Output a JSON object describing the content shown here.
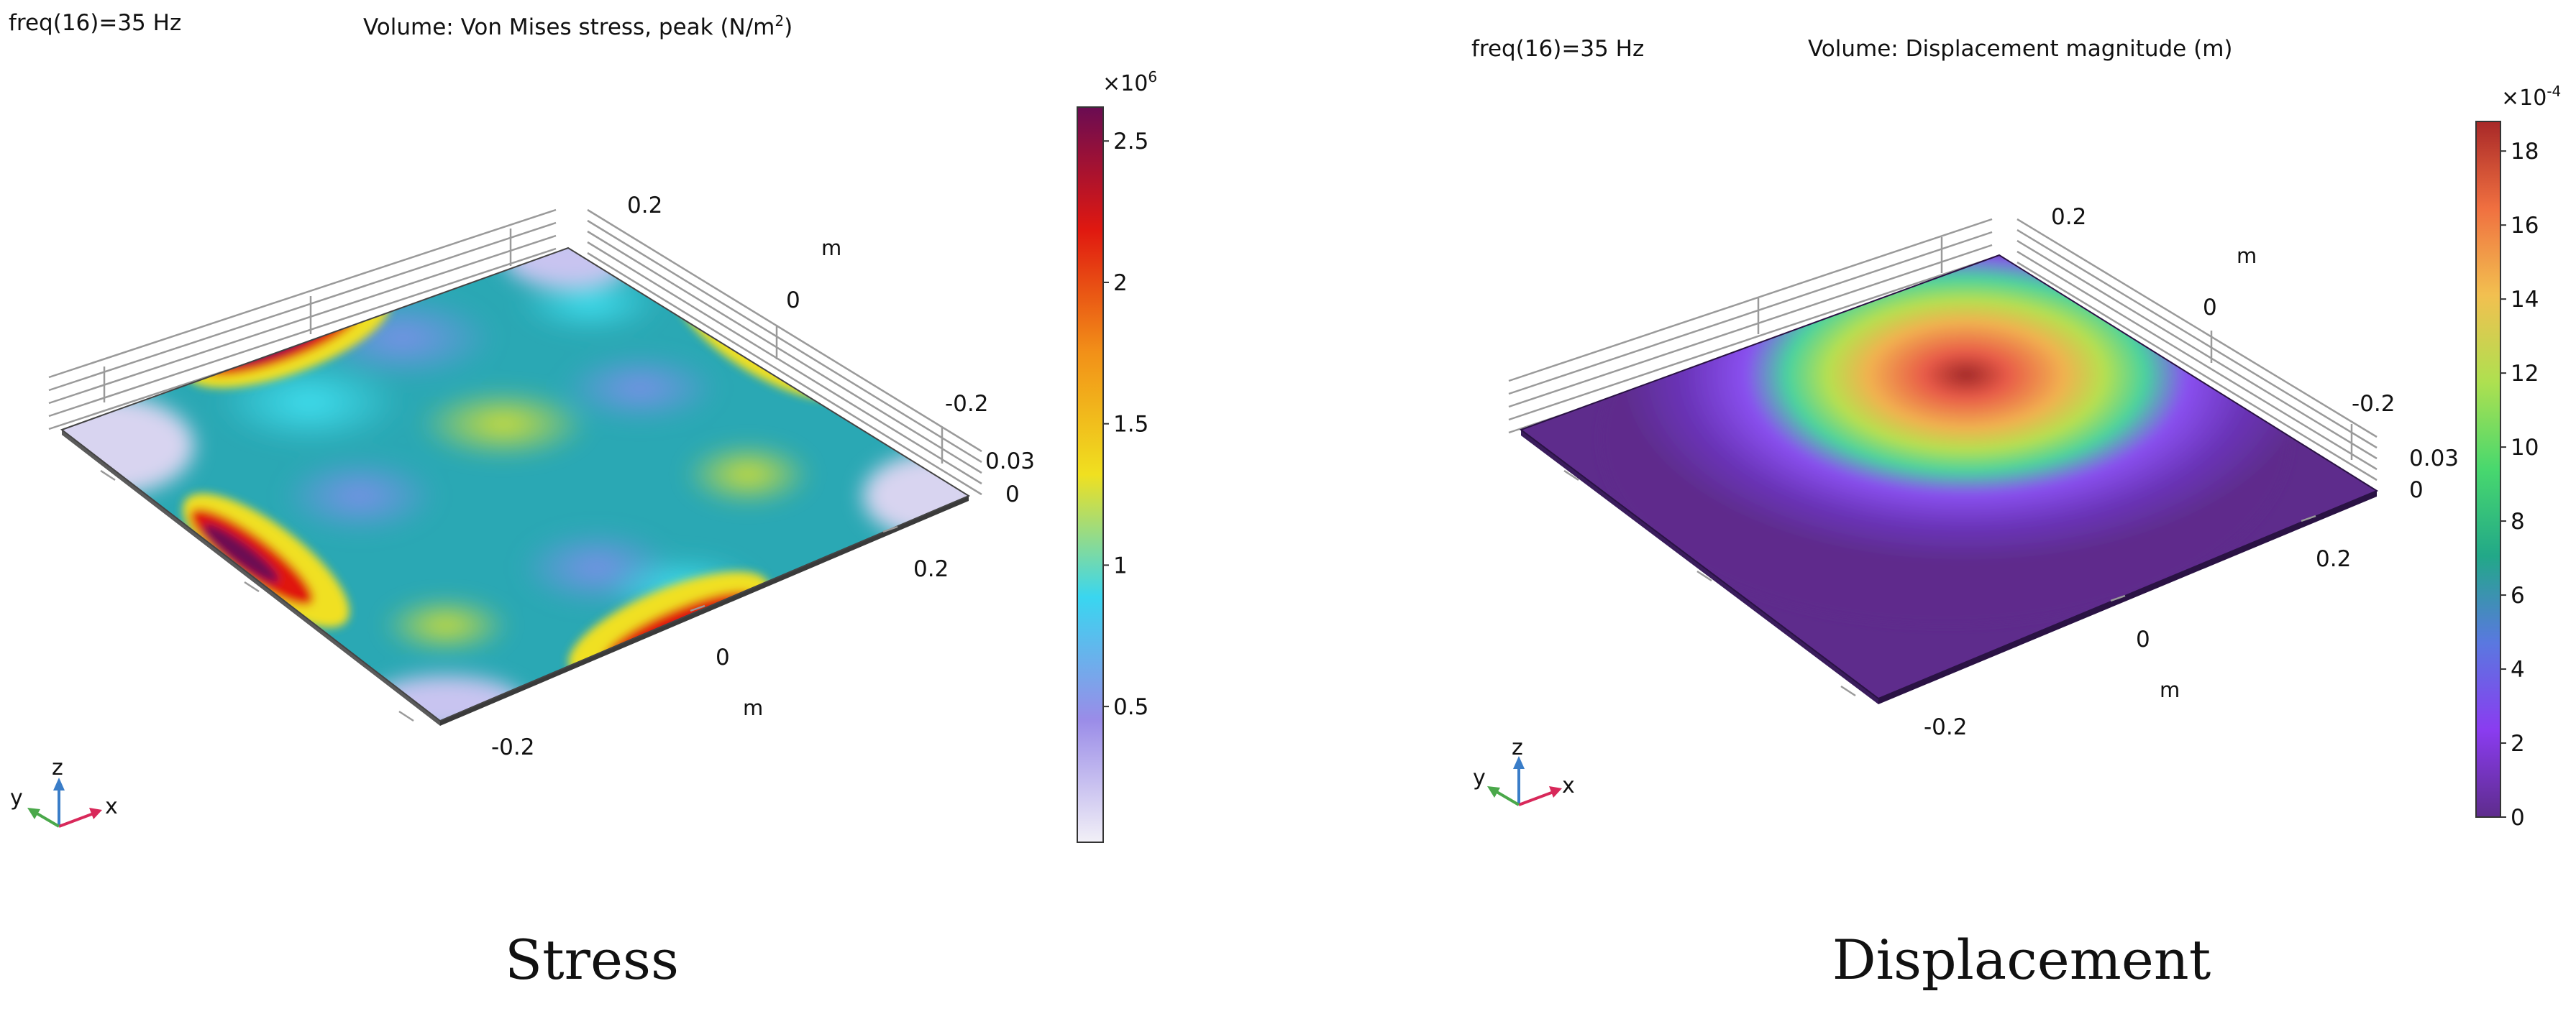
{
  "panels": [
    {
      "id": "stress",
      "freq_label": "freq(16)=35 Hz",
      "title_main": "Volume: Von Mises stress, peak (N/m",
      "title_sup": "2",
      "title_tail": ")",
      "caption": "Stress",
      "colorbar": {
        "multiplier_base": "×10",
        "multiplier_exp": "6",
        "ticks": [
          "2.5",
          "2",
          "1.5",
          "1",
          "0.5"
        ],
        "tick_values": [
          2.5,
          2,
          1.5,
          1,
          0.5
        ],
        "range": [
          0.02,
          2.62
        ],
        "colors": [
          "#f2f0f7",
          "#9a8ce8",
          "#39d6f0",
          "#f0e020",
          "#f29018",
          "#e01810",
          "#6a0c52"
        ]
      },
      "axes": {
        "y_ticks": [
          "0.2",
          "0",
          "-0.2"
        ],
        "y_unit": "m",
        "z_ticks": [
          "0.03",
          "0"
        ],
        "x_ticks": [
          "0.2",
          "0",
          "-0.2"
        ],
        "x_unit": "m"
      },
      "triad": {
        "z": "z",
        "y": "y",
        "x": "x"
      }
    },
    {
      "id": "displacement",
      "freq_label": "freq(16)=35 Hz",
      "title_main": "Volume: Displacement magnitude (m)",
      "title_sup": "",
      "title_tail": "",
      "caption": "Displacement",
      "colorbar": {
        "multiplier_base": "×10",
        "multiplier_exp": "-4",
        "ticks": [
          "18",
          "16",
          "14",
          "12",
          "10",
          "8",
          "6",
          "4",
          "2",
          "0"
        ],
        "tick_values": [
          18,
          16,
          14,
          12,
          10,
          8,
          6,
          4,
          2,
          0
        ],
        "range": [
          0,
          18.8
        ],
        "colors": [
          "#5e2c8c",
          "#8a3cf0",
          "#5a78e0",
          "#22a888",
          "#48d86e",
          "#aee050",
          "#f2c050",
          "#f07040",
          "#a82828"
        ]
      },
      "axes": {
        "y_ticks": [
          "0.2",
          "0",
          "-0.2"
        ],
        "y_unit": "m",
        "z_ticks": [
          "0.03",
          "0"
        ],
        "x_ticks": [
          "0.2",
          "0",
          "-0.2"
        ],
        "x_unit": "m"
      },
      "triad": {
        "z": "z",
        "y": "y",
        "x": "x"
      }
    }
  ]
}
